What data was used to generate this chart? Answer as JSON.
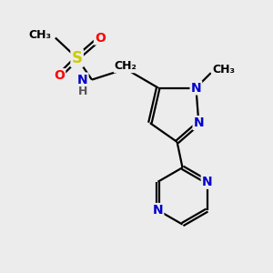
{
  "bg_color": "#ececec",
  "atom_colors": {
    "C": "#000000",
    "N": "#0000cc",
    "S": "#cccc00",
    "O": "#ff0000",
    "H": "#555555"
  },
  "bond_color": "#000000",
  "bond_width": 1.6,
  "figsize": [
    3.0,
    3.0
  ],
  "dpi": 100,
  "xlim": [
    0,
    10
  ],
  "ylim": [
    0,
    10
  ],
  "label_fontsize": 10,
  "label_fontsize_small": 9
}
